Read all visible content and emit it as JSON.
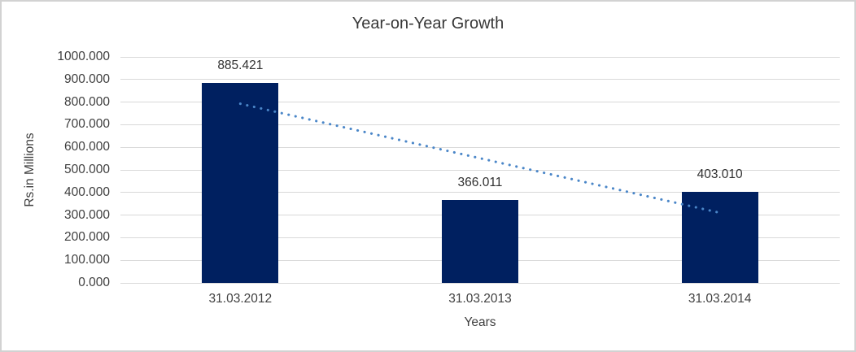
{
  "frame": {
    "background": "#ffffff",
    "border_color": "#d2d2d2"
  },
  "chart_data": {
    "type": "bar",
    "title": "Year-on-Year Growth",
    "xlabel": "Years",
    "ylabel": "Rs.in Millions",
    "categories": [
      "31.03.2012",
      "31.03.2013",
      "31.03.2014"
    ],
    "values": [
      885.421,
      366.011,
      403.01
    ],
    "value_labels": [
      "885.421",
      "366.011",
      "403.010"
    ],
    "ylim": [
      0,
      1000
    ],
    "ytick_step": 100,
    "ytick_labels": [
      "0.000",
      "100.000",
      "200.000",
      "300.000",
      "400.000",
      "500.000",
      "600.000",
      "700.000",
      "800.000",
      "900.000",
      "1000.000"
    ],
    "grid": "horizontal-on",
    "legend": "none",
    "colors": {
      "bar": "#002060",
      "gridline": "#d9d9d9",
      "axis_line": "#d9d9d9",
      "text": "#3f3f3f",
      "trendline": "#4a86c8"
    },
    "trendline": {
      "type": "linear",
      "style": "dotted",
      "color": "#4a86c8"
    }
  }
}
